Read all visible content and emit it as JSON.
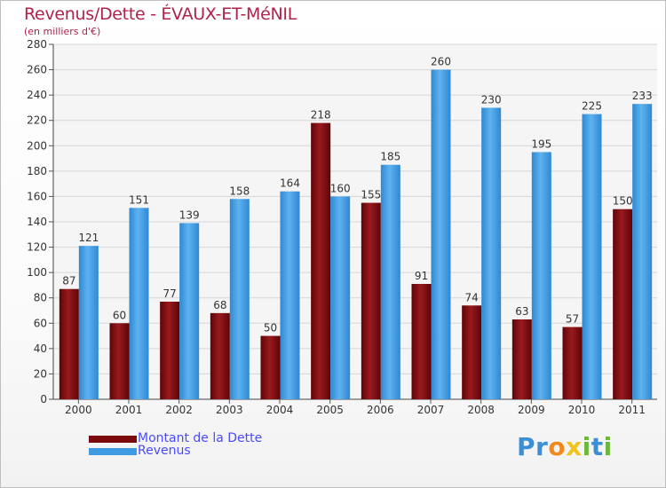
{
  "title": "Revenus/Dette - ÉVAUX-ET-MéNIL",
  "subtitle": "(en milliers d'€)",
  "colors": {
    "dette": "#7a0a0e",
    "revenus": "#3f9be3",
    "title": "#b0224a",
    "legend_text": "#4a4aff"
  },
  "legend": [
    {
      "label": "Montant de la Dette",
      "color": "#7a0a0e"
    },
    {
      "label": "Revenus",
      "color": "#3f9be3"
    }
  ],
  "logo": {
    "text": "Proxiti",
    "letters": [
      "P",
      "r",
      "o",
      "x",
      "i",
      "t",
      "i"
    ],
    "colors": [
      "#3a8fd6",
      "#3a8fd6",
      "#f08a1d",
      "#f0c419",
      "#6bb83a",
      "#3a8fd6",
      "#6bb83a"
    ]
  },
  "chart_data": {
    "type": "bar",
    "title": "Revenus/Dette - ÉVAUX-ET-MéNIL",
    "subtitle": "(en milliers d'€)",
    "categories": [
      "2000",
      "2001",
      "2002",
      "2003",
      "2004",
      "2005",
      "2006",
      "2007",
      "2008",
      "2009",
      "2010",
      "2011"
    ],
    "series": [
      {
        "name": "Montant de la Dette",
        "values": [
          87,
          60,
          77,
          68,
          50,
          218,
          155,
          91,
          74,
          63,
          57,
          150
        ]
      },
      {
        "name": "Revenus",
        "values": [
          121,
          151,
          139,
          158,
          164,
          160,
          185,
          260,
          230,
          195,
          225,
          233
        ]
      }
    ],
    "ylim": [
      0,
      280
    ],
    "yticks": [
      0,
      20,
      40,
      60,
      80,
      100,
      120,
      140,
      160,
      180,
      200,
      220,
      240,
      260,
      280
    ],
    "grid": true,
    "legend_position": "bottom-left"
  }
}
